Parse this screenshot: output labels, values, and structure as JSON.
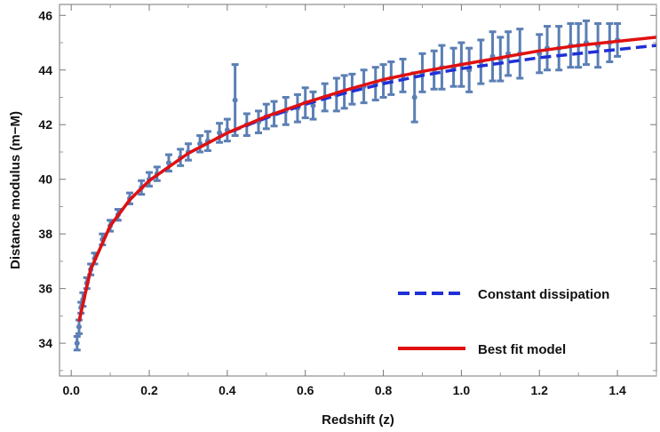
{
  "chart_data": {
    "type": "scatter",
    "title": "",
    "xlabel": "Redshift (z)",
    "ylabel": "Distance modulus (m−M)",
    "xlim": [
      -0.03,
      1.5
    ],
    "ylim": [
      32.8,
      46.4
    ],
    "xticks": [
      "0.0",
      "0.2",
      "0.4",
      "0.6",
      "0.8",
      "1.0",
      "1.2",
      "1.4"
    ],
    "yticks": [
      "34",
      "36",
      "38",
      "40",
      "42",
      "44",
      "46"
    ],
    "grid": false,
    "legend_position": "bottom-right",
    "colors": {
      "observations": "#5b7fb4",
      "constant_dissipation": "#1f2fd6",
      "best_fit": "#e01010"
    },
    "series": [
      {
        "name": "Constant dissipation",
        "style": "dashed",
        "x": [
          0.02,
          0.05,
          0.1,
          0.15,
          0.2,
          0.3,
          0.4,
          0.5,
          0.6,
          0.7,
          0.8,
          0.9,
          1.0,
          1.1,
          1.2,
          1.3,
          1.4,
          1.5
        ],
        "y": [
          34.8,
          36.7,
          38.3,
          39.25,
          39.95,
          40.95,
          41.7,
          42.25,
          42.75,
          43.15,
          43.5,
          43.8,
          44.05,
          44.25,
          44.45,
          44.6,
          44.75,
          44.9
        ]
      },
      {
        "name": "Best fit model",
        "style": "solid",
        "x": [
          0.02,
          0.05,
          0.1,
          0.15,
          0.2,
          0.3,
          0.4,
          0.5,
          0.6,
          0.7,
          0.8,
          0.9,
          1.0,
          1.1,
          1.2,
          1.3,
          1.4,
          1.5
        ],
        "y": [
          34.8,
          36.7,
          38.3,
          39.25,
          39.95,
          40.95,
          41.7,
          42.3,
          42.8,
          43.25,
          43.65,
          43.95,
          44.2,
          44.45,
          44.7,
          44.9,
          45.05,
          45.2
        ]
      },
      {
        "style": "points-with-error-bars",
        "x": [
          0.015,
          0.02,
          0.025,
          0.03,
          0.04,
          0.05,
          0.06,
          0.08,
          0.1,
          0.12,
          0.15,
          0.18,
          0.2,
          0.22,
          0.25,
          0.28,
          0.3,
          0.33,
          0.35,
          0.38,
          0.4,
          0.42,
          0.45,
          0.48,
          0.5,
          0.52,
          0.55,
          0.58,
          0.6,
          0.62,
          0.65,
          0.68,
          0.7,
          0.72,
          0.75,
          0.78,
          0.8,
          0.82,
          0.85,
          0.88,
          0.9,
          0.93,
          0.95,
          0.98,
          1.0,
          1.02,
          1.05,
          1.08,
          1.1,
          1.12,
          1.15,
          1.2,
          1.22,
          1.25,
          1.28,
          1.3,
          1.32,
          1.35,
          1.38,
          1.4
        ],
        "y": [
          34.0,
          34.6,
          35.3,
          35.6,
          36.2,
          36.7,
          37.1,
          37.8,
          38.3,
          38.7,
          39.3,
          39.7,
          40.0,
          40.2,
          40.6,
          40.8,
          41.0,
          41.3,
          41.4,
          41.7,
          41.8,
          42.9,
          42.0,
          42.1,
          42.3,
          42.4,
          42.5,
          42.6,
          42.8,
          42.7,
          43.0,
          43.1,
          43.2,
          43.3,
          43.4,
          43.5,
          43.6,
          43.7,
          43.8,
          43.0,
          43.9,
          44.0,
          44.1,
          44.1,
          44.2,
          44.0,
          44.3,
          44.5,
          44.4,
          44.6,
          44.6,
          44.6,
          44.8,
          44.8,
          44.9,
          44.9,
          45.0,
          44.9,
          45.0,
          45.1
        ],
        "err": [
          0.25,
          0.25,
          0.2,
          0.25,
          0.2,
          0.2,
          0.2,
          0.2,
          0.2,
          0.2,
          0.2,
          0.25,
          0.25,
          0.25,
          0.3,
          0.3,
          0.3,
          0.3,
          0.35,
          0.35,
          0.4,
          1.3,
          0.4,
          0.4,
          0.45,
          0.45,
          0.5,
          0.5,
          0.55,
          0.5,
          0.5,
          0.6,
          0.6,
          0.55,
          0.6,
          0.6,
          0.6,
          0.6,
          0.6,
          0.9,
          0.7,
          0.7,
          0.8,
          0.7,
          0.8,
          0.8,
          0.8,
          0.9,
          0.8,
          0.8,
          0.9,
          0.7,
          0.8,
          0.8,
          0.8,
          0.8,
          0.8,
          0.8,
          0.7,
          0.6
        ]
      }
    ]
  }
}
